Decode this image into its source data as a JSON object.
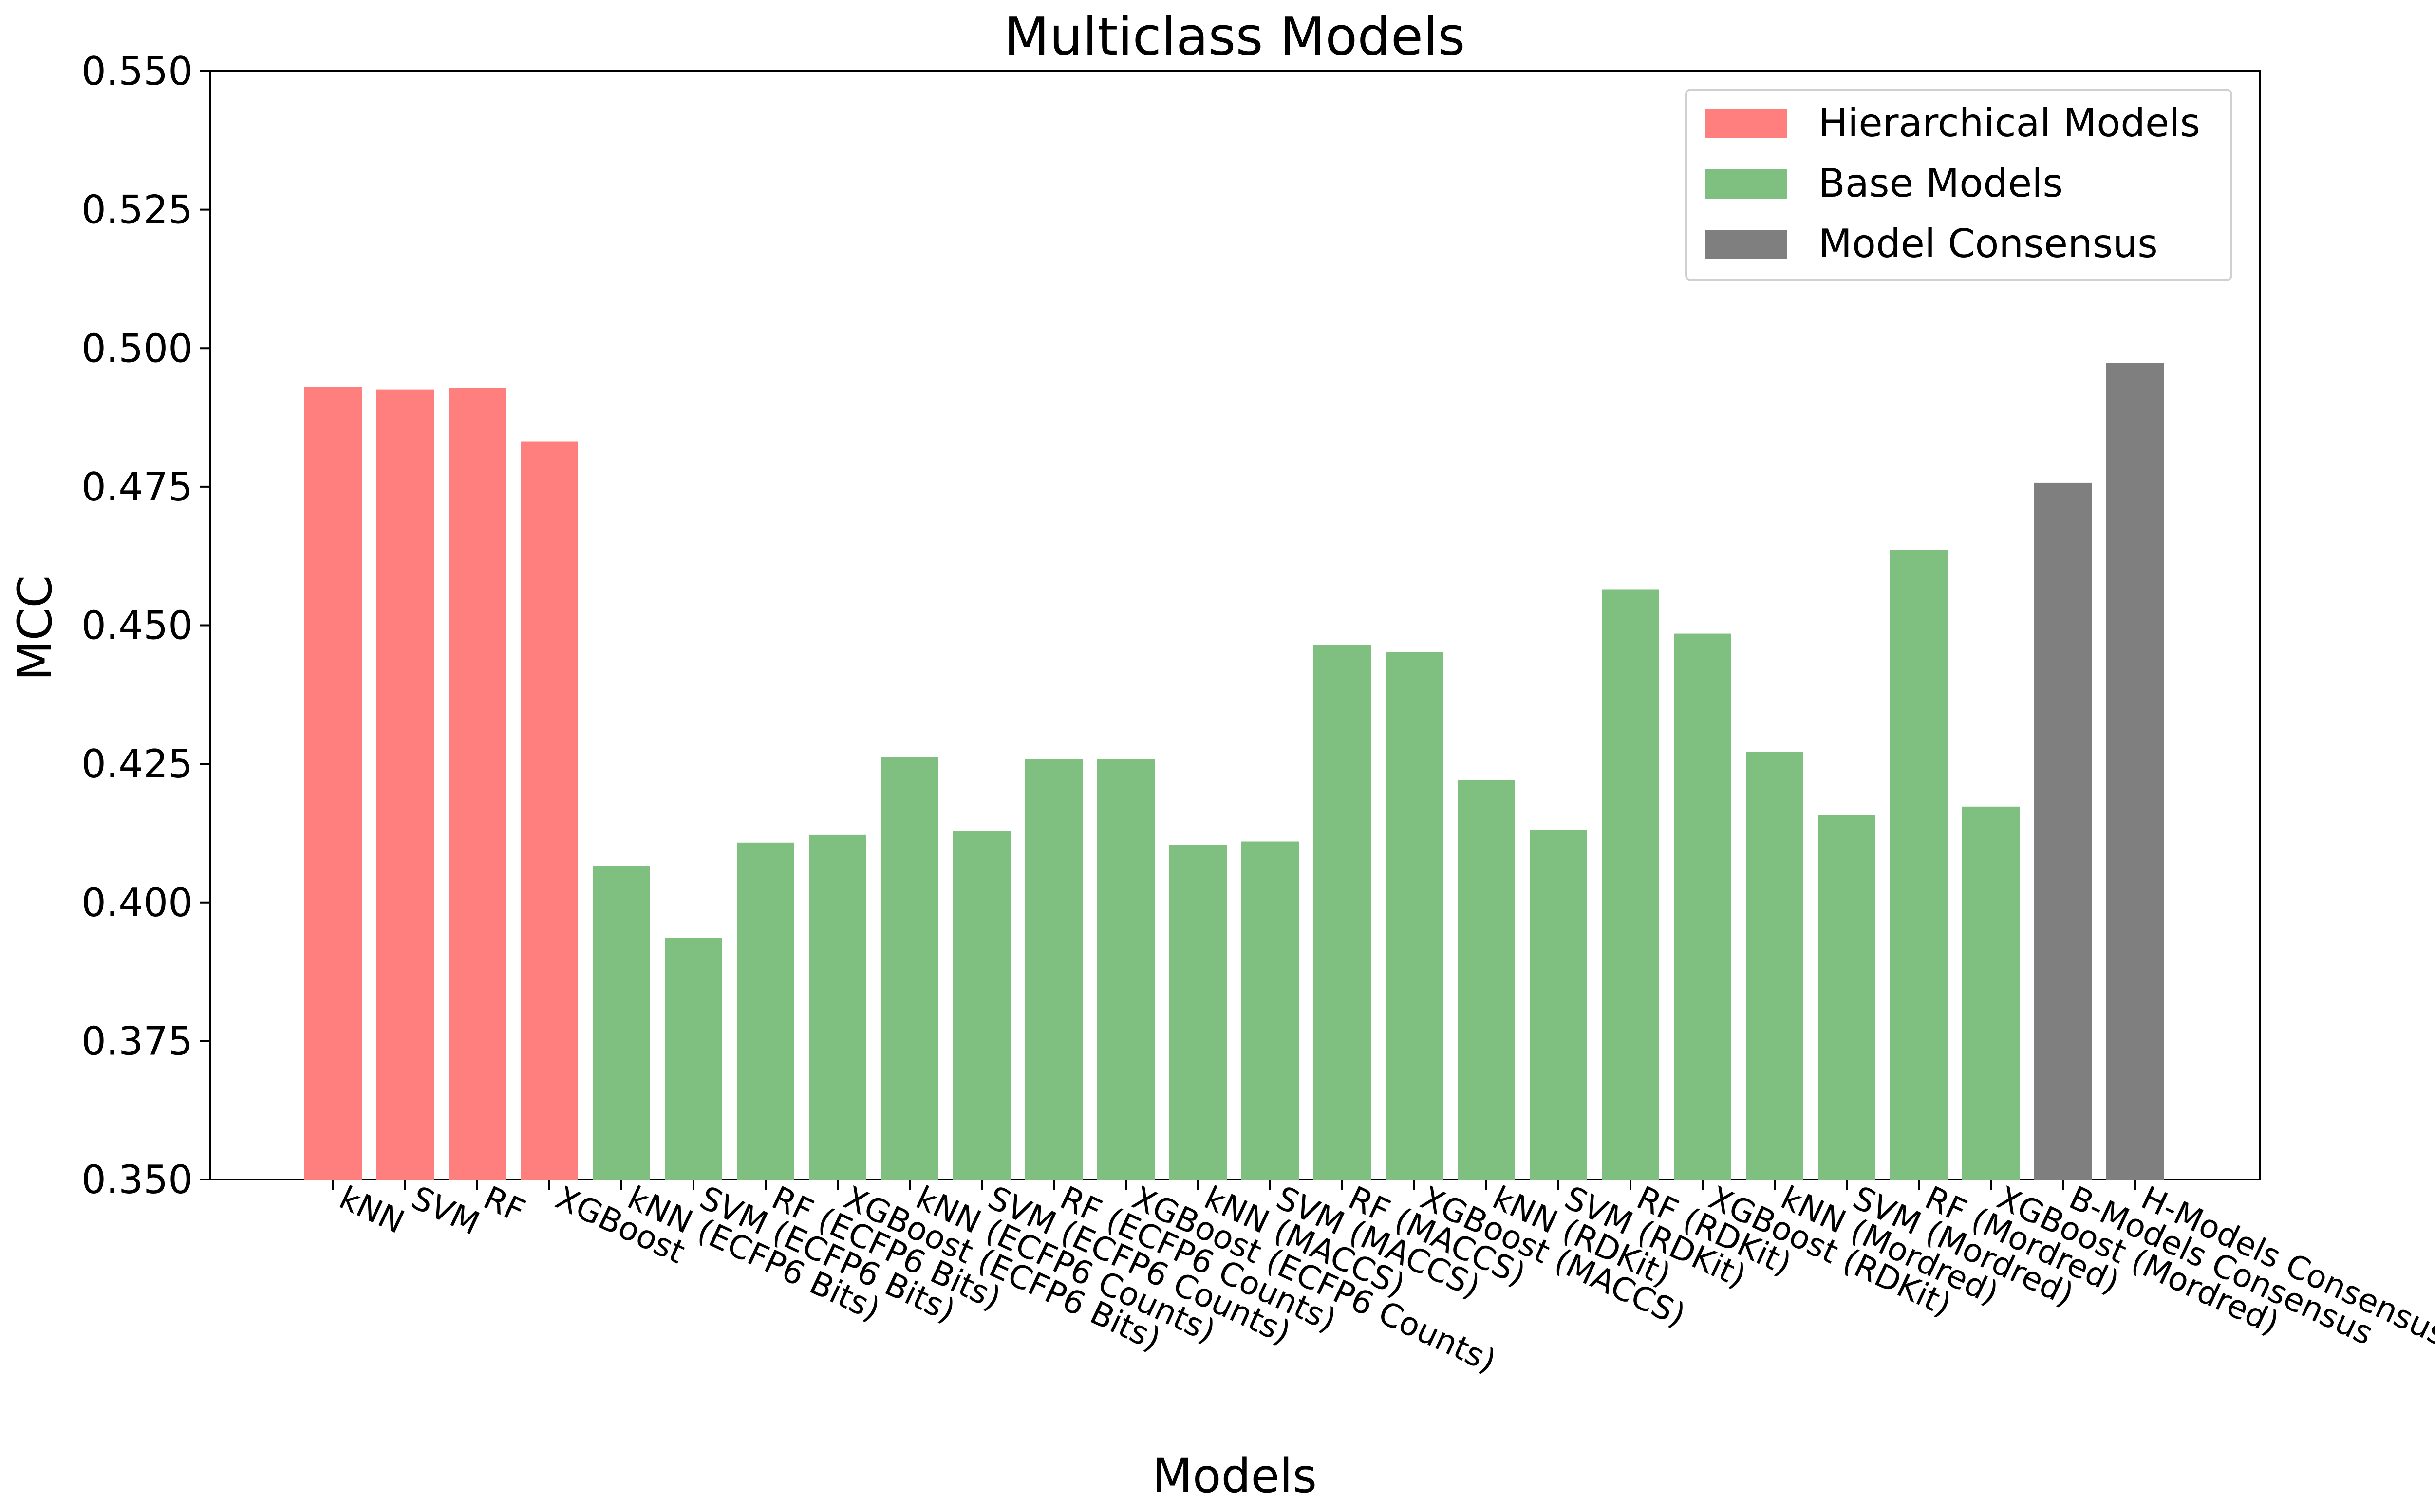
{
  "chart_data": {
    "type": "bar",
    "title": "Multiclass Models",
    "xlabel": "Models",
    "ylabel": "MCC",
    "ylim": [
      0.35,
      0.55
    ],
    "yticks": [
      "0.350",
      "0.375",
      "0.400",
      "0.425",
      "0.450",
      "0.475",
      "0.500",
      "0.525",
      "0.550"
    ],
    "grid": false,
    "legend_position": "top-right",
    "legend": [
      {
        "label": "Hierarchical Models",
        "color": "#ff7f7f"
      },
      {
        "label": "Base Models",
        "color": "#7fbf7f"
      },
      {
        "label": "Model Consensus",
        "color": "#7f7f7f"
      }
    ],
    "categories": [
      "kNN",
      "SVM",
      "RF",
      "XGBoost",
      "kNN (ECFP6 Bits)",
      "SVM (ECFP6 Bits)",
      "RF (ECFP6 Bits)",
      "XGBoost (ECFP6 Bits)",
      "kNN (ECFP6 Counts)",
      "SVM (ECFP6 Counts)",
      "RF (ECFP6 Counts)",
      "XGBoost (ECFP6 Counts)",
      "kNN (MACCS)",
      "SVM (MACCS)",
      "RF (MACCS)",
      "XGBoost (MACCS)",
      "kNN (RDKit)",
      "SVM (RDKit)",
      "RF (RDKit)",
      "XGBoost (RDKit)",
      "kNN (Mordred)",
      "SVM (Mordred)",
      "RF (Mordred)",
      "XGBoost (Mordred)",
      "B-Models Consensus",
      "H-Models Consensus"
    ],
    "values": [
      0.493,
      0.4925,
      0.4928,
      0.4832,
      0.4066,
      0.3936,
      0.4108,
      0.4122,
      0.4262,
      0.4128,
      0.4258,
      0.4258,
      0.4104,
      0.411,
      0.4465,
      0.4452,
      0.4221,
      0.413,
      0.4565,
      0.4485,
      0.4272,
      0.4157,
      0.4636,
      0.4173,
      0.4757,
      0.4973
    ],
    "groups": [
      "Hierarchical Models",
      "Hierarchical Models",
      "Hierarchical Models",
      "Hierarchical Models",
      "Base Models",
      "Base Models",
      "Base Models",
      "Base Models",
      "Base Models",
      "Base Models",
      "Base Models",
      "Base Models",
      "Base Models",
      "Base Models",
      "Base Models",
      "Base Models",
      "Base Models",
      "Base Models",
      "Base Models",
      "Base Models",
      "Base Models",
      "Base Models",
      "Base Models",
      "Base Models",
      "Model Consensus",
      "Model Consensus"
    ]
  }
}
